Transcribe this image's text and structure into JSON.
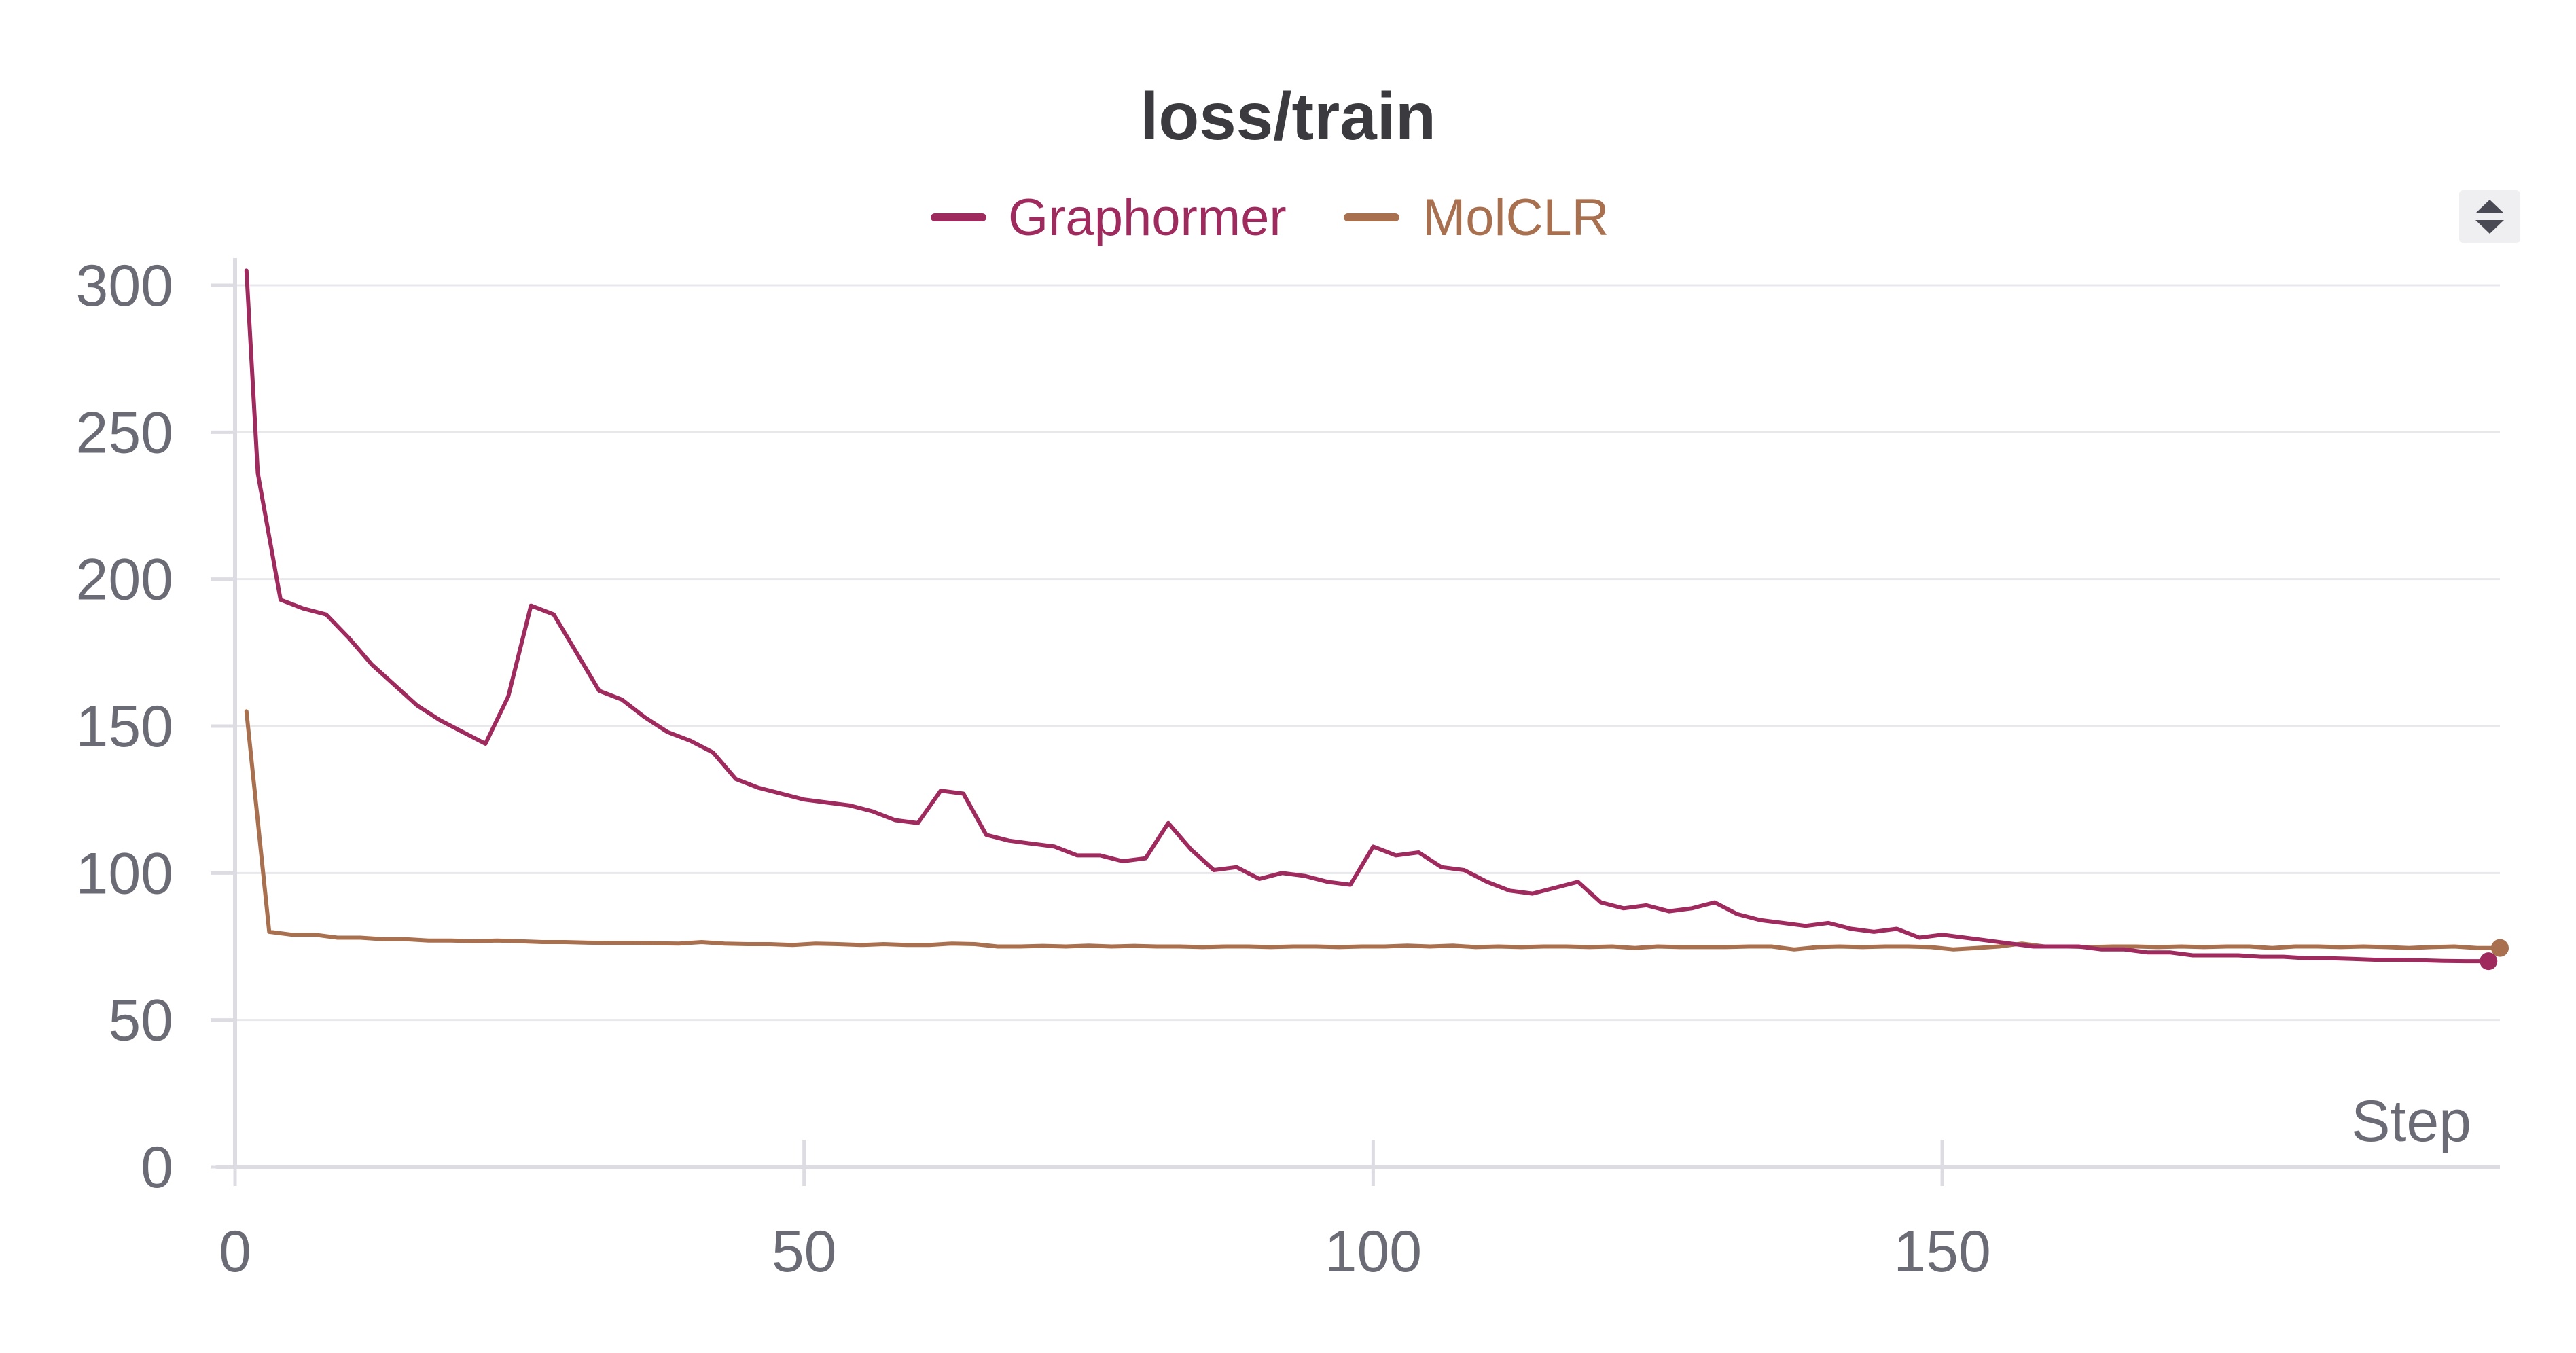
{
  "chart_data": {
    "type": "line",
    "title": "loss/train",
    "xlabel": "Step",
    "ylabel": "",
    "xlim": [
      0,
      199
    ],
    "ylim": [
      0,
      300
    ],
    "xticks": [
      0,
      50,
      100,
      150
    ],
    "yticks": [
      0,
      50,
      100,
      150,
      200,
      250,
      300
    ],
    "grid": "horizontal",
    "legend_position": "top-center",
    "series": [
      {
        "name": "Graphormer",
        "color": "#9e2a5e",
        "x": [
          1,
          2,
          4,
          6,
          8,
          10,
          12,
          14,
          16,
          18,
          20,
          22,
          24,
          26,
          28,
          30,
          32,
          34,
          36,
          38,
          40,
          42,
          44,
          46,
          48,
          50,
          52,
          54,
          56,
          58,
          60,
          62,
          64,
          66,
          68,
          70,
          72,
          74,
          76,
          78,
          80,
          82,
          84,
          86,
          88,
          90,
          92,
          94,
          96,
          98,
          100,
          102,
          104,
          106,
          108,
          110,
          112,
          114,
          116,
          118,
          120,
          122,
          124,
          126,
          128,
          130,
          132,
          134,
          136,
          138,
          140,
          142,
          144,
          146,
          148,
          150,
          152,
          154,
          156,
          158,
          160,
          162,
          164,
          166,
          168,
          170,
          172,
          174,
          176,
          178,
          180,
          182,
          184,
          186,
          188,
          190,
          192,
          194,
          196,
          198
        ],
        "values": [
          305,
          236,
          193,
          190,
          188,
          180,
          171,
          164,
          157,
          152,
          148,
          144,
          160,
          191,
          188,
          175,
          162,
          159,
          153,
          148,
          145,
          141,
          132,
          129,
          127,
          125,
          124,
          123,
          121,
          118,
          117,
          128,
          127,
          113,
          111,
          110,
          109,
          106,
          106,
          104,
          105,
          117,
          108,
          101,
          102,
          98,
          100,
          99,
          97,
          96,
          109,
          106,
          107,
          102,
          101,
          97,
          94,
          93,
          95,
          97,
          90,
          88,
          89,
          87,
          88,
          90,
          86,
          84,
          83,
          82,
          83,
          81,
          80,
          81,
          78,
          79,
          78,
          77,
          76,
          75,
          75,
          75,
          74,
          74,
          73,
          73,
          72,
          72,
          72,
          71.5,
          71.5,
          71,
          71,
          70.8,
          70.5,
          70.5,
          70.3,
          70.1,
          70,
          70
        ]
      },
      {
        "name": "MolCLR",
        "color": "#a8704e",
        "x": [
          1,
          3,
          5,
          7,
          9,
          11,
          13,
          15,
          17,
          19,
          21,
          23,
          25,
          27,
          29,
          31,
          33,
          35,
          37,
          39,
          41,
          43,
          45,
          47,
          49,
          51,
          53,
          55,
          57,
          59,
          61,
          63,
          65,
          67,
          69,
          71,
          73,
          75,
          77,
          79,
          81,
          83,
          85,
          87,
          89,
          91,
          93,
          95,
          97,
          99,
          101,
          103,
          105,
          107,
          109,
          111,
          113,
          115,
          117,
          119,
          121,
          123,
          125,
          127,
          129,
          131,
          133,
          135,
          137,
          139,
          141,
          143,
          145,
          147,
          149,
          151,
          153,
          155,
          157,
          159,
          161,
          163,
          165,
          167,
          169,
          171,
          173,
          175,
          177,
          179,
          181,
          183,
          185,
          187,
          189,
          191,
          193,
          195,
          197,
          199
        ],
        "values": [
          155,
          80,
          79,
          79,
          78,
          78,
          77.5,
          77.5,
          77,
          77,
          76.8,
          77,
          76.8,
          76.5,
          76.5,
          76.3,
          76.2,
          76.2,
          76.1,
          76,
          76.5,
          76,
          75.8,
          75.8,
          75.5,
          76,
          75.8,
          75.5,
          75.8,
          75.5,
          75.5,
          76,
          75.8,
          75,
          75,
          75.2,
          75,
          75.3,
          75,
          75.2,
          75,
          75,
          74.8,
          75,
          75,
          74.8,
          75,
          75,
          74.8,
          75,
          75,
          75.3,
          75,
          75.3,
          74.8,
          75,
          74.8,
          75,
          75,
          74.8,
          75,
          74.5,
          75,
          74.8,
          74.8,
          74.8,
          75,
          75,
          74,
          74.8,
          75,
          74.8,
          75,
          75,
          74.8,
          74,
          74.5,
          75,
          76,
          75,
          75,
          74.8,
          75,
          75,
          74.8,
          75,
          74.8,
          75,
          75,
          74.5,
          75,
          75,
          74.8,
          75,
          74.8,
          74.5,
          74.8,
          75,
          74.5,
          74.5
        ]
      }
    ]
  },
  "ui": {
    "sort_icon": "sort-updown-icon"
  }
}
